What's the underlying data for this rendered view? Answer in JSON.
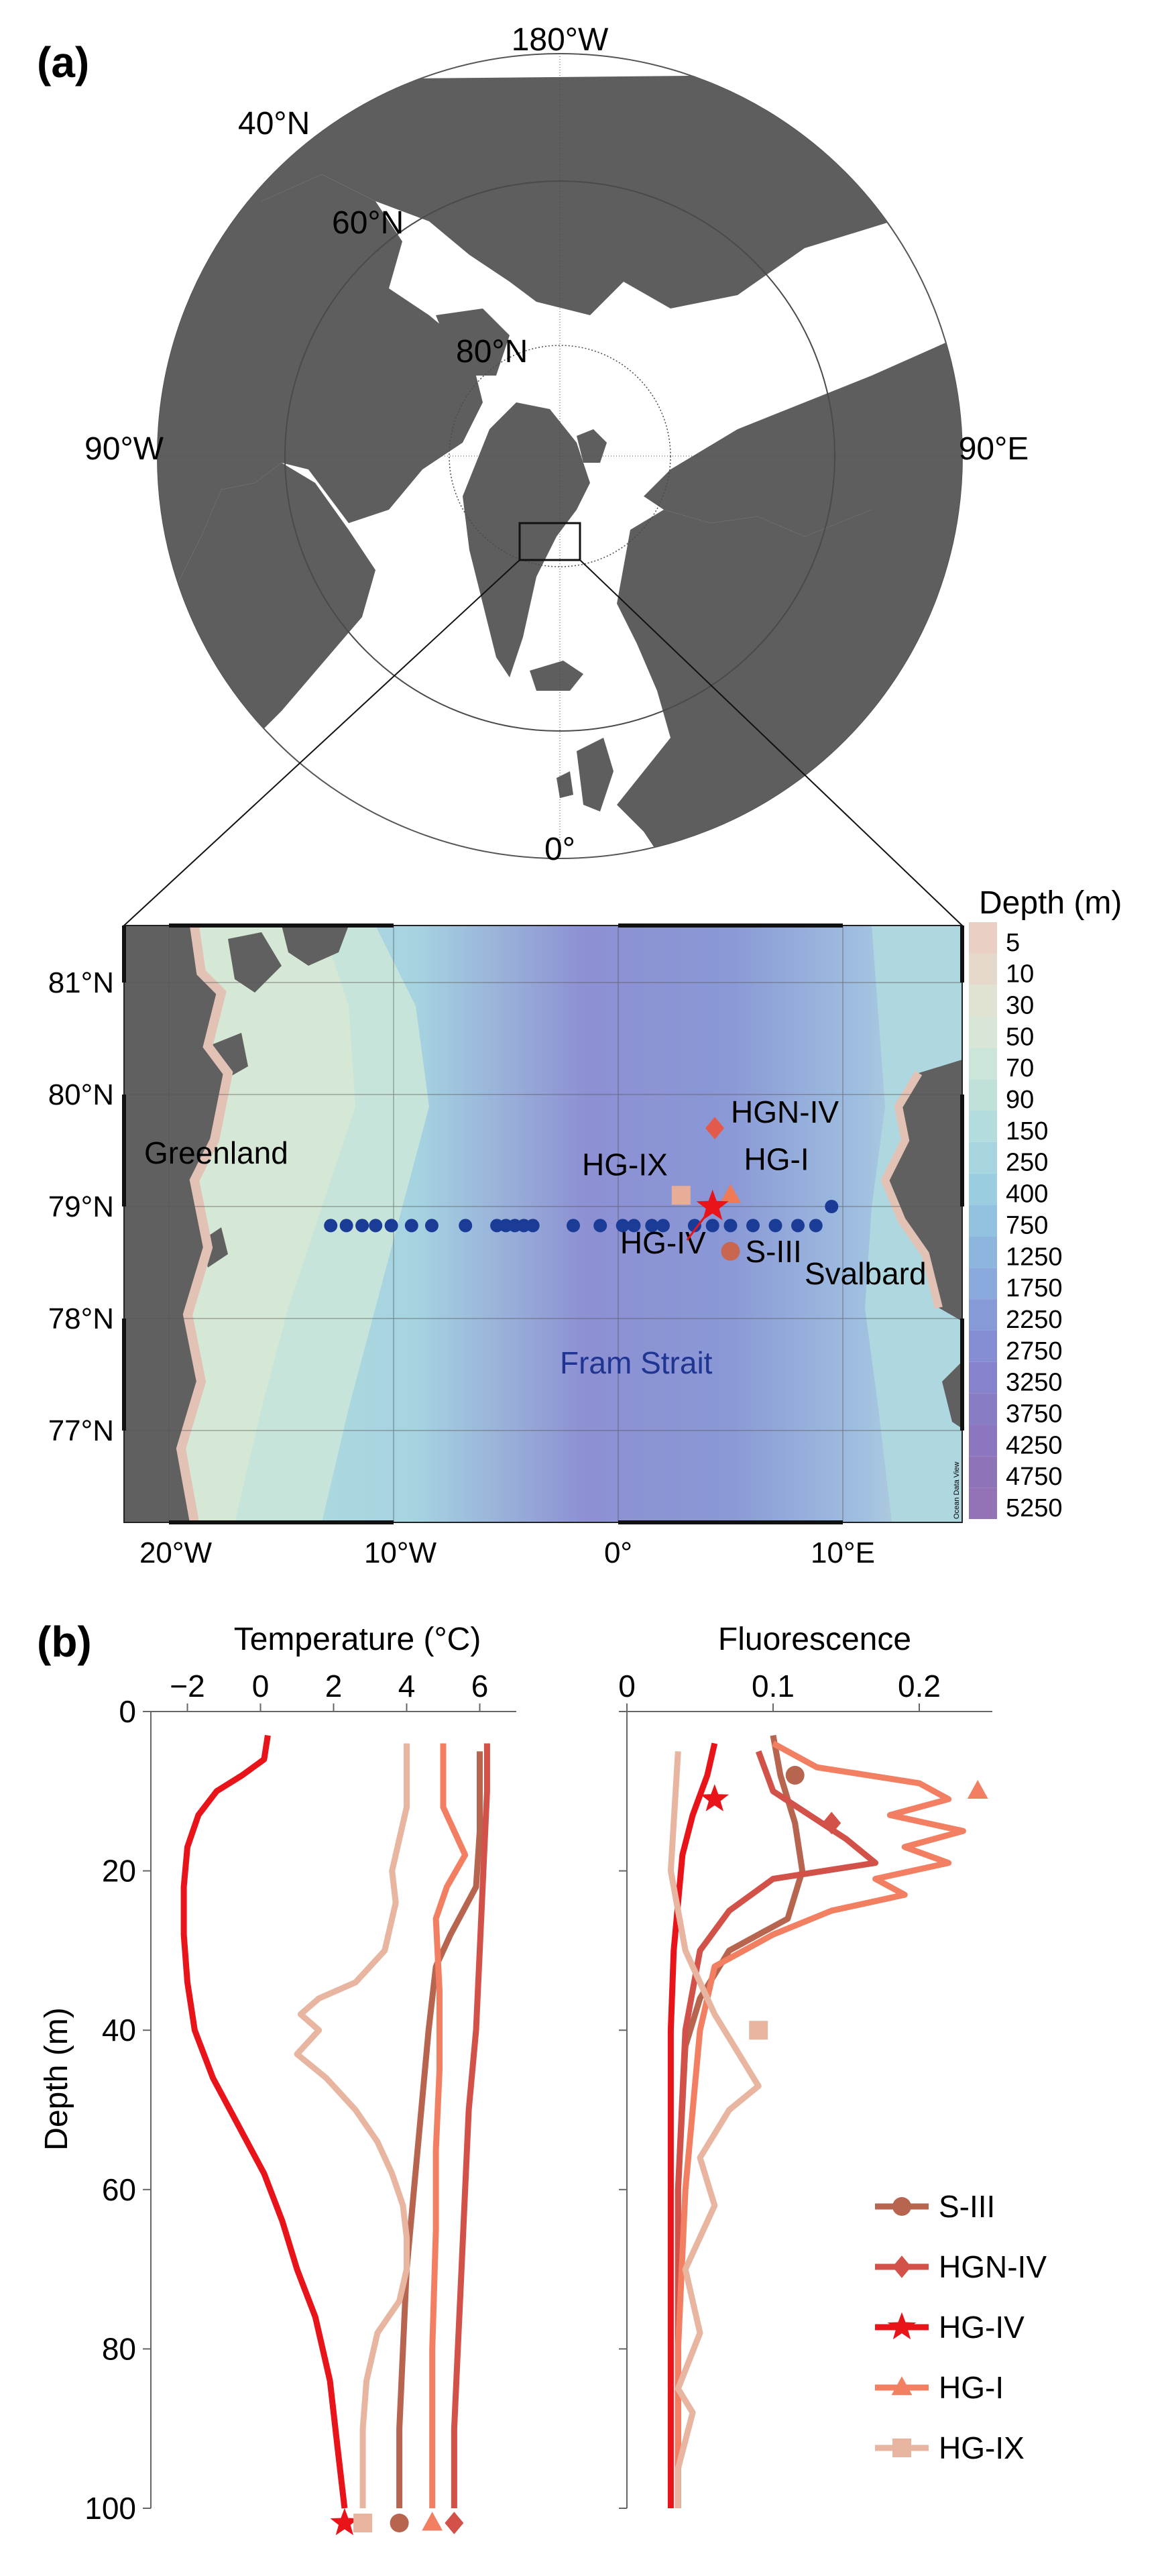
{
  "panel_labels": {
    "a": "(a)",
    "b": "(b)"
  },
  "polar_map": {
    "lat_labels": [
      "40°N",
      "60°N",
      "80°N"
    ],
    "lon_labels": {
      "top": "180°W",
      "left": "90°W",
      "right": "90°E",
      "bottom": "0°"
    },
    "colors": {
      "land": "#5e5e5e",
      "ocean": "#ffffff",
      "grid": "#4a4a4a"
    }
  },
  "inset_map": {
    "lat_labels": [
      "81°N",
      "80°N",
      "79°N",
      "78°N",
      "77°N"
    ],
    "lon_labels": [
      "20°W",
      "10°W",
      "0°",
      "10°E"
    ],
    "places": {
      "greenland": "Greenland",
      "svalbard": "Svalbard",
      "fram": "Fram Strait"
    },
    "stations": [
      {
        "name": "HGN-IV",
        "lon": 4.3,
        "lat": 79.7,
        "marker": "diamond",
        "color": "#e45a4a"
      },
      {
        "name": "HG-IX",
        "lon": 2.8,
        "lat": 79.1,
        "marker": "square",
        "color": "#e7ad98"
      },
      {
        "name": "HG-I",
        "lon": 5.0,
        "lat": 79.1,
        "marker": "triangle",
        "color": "#f07a55"
      },
      {
        "name": "HG-IV",
        "lon": 4.2,
        "lat": 79.0,
        "marker": "star",
        "color": "#e8141a"
      },
      {
        "name": "S-III",
        "lon": 5.0,
        "lat": 78.6,
        "marker": "circle",
        "color": "#c8664f"
      }
    ],
    "transect_lons": [
      -12.8,
      -12.1,
      -11.4,
      -10.8,
      -10.1,
      -9.2,
      -8.3,
      -6.8,
      -5.4,
      -5.0,
      -4.6,
      -4.2,
      -3.8,
      -2.0,
      -0.8,
      0.2,
      0.7,
      1.5,
      2.0,
      3.4,
      4.2,
      5.0,
      6.0,
      7.0,
      8.0,
      8.8
    ],
    "transect_lat": 78.83,
    "transect_end": {
      "lon": 9.5,
      "lat": 79.0
    },
    "dot_color": "#1b3c96",
    "watermark": "Ocean Data View",
    "depth_legend": {
      "title": "Depth (m)",
      "levels": [
        "5",
        "10",
        "30",
        "50",
        "70",
        "90",
        "150",
        "250",
        "400",
        "750",
        "1250",
        "1750",
        "2250",
        "2750",
        "3250",
        "3750",
        "4250",
        "4750",
        "5250"
      ],
      "colors": [
        "#ead0c4",
        "#e6d9cc",
        "#e0e2d2",
        "#d7e6d6",
        "#cbe5d8",
        "#bfe1da",
        "#b2dcdd",
        "#a6d5df",
        "#9bcde0",
        "#92c2e0",
        "#8db6de",
        "#8aa9dc",
        "#879ad8",
        "#858dd3",
        "#8683cc",
        "#887cc5",
        "#8b76bf",
        "#8f73b9",
        "#9372b5"
      ]
    }
  },
  "chart_data": [
    {
      "type": "line",
      "title": "Temperature (°C)",
      "xlabel": "Temperature (°C)",
      "ylabel": "Depth (m)",
      "xlim": [
        -3,
        7
      ],
      "ylim": [
        0,
        100
      ],
      "x_ticks": [
        "−2",
        "0",
        "2",
        "4",
        "6"
      ],
      "y_ticks": [
        "0",
        "20",
        "40",
        "60",
        "80",
        "100"
      ],
      "series": [
        {
          "name": "S-III",
          "color": "#b86550",
          "marker": "circle",
          "points": [
            [
              6.0,
              5
            ],
            [
              6.0,
              15
            ],
            [
              5.9,
              22
            ],
            [
              5.2,
              28
            ],
            [
              4.8,
              32
            ],
            [
              4.6,
              40
            ],
            [
              4.4,
              50
            ],
            [
              4.2,
              60
            ],
            [
              4.0,
              70
            ],
            [
              3.9,
              80
            ],
            [
              3.8,
              90
            ],
            [
              3.8,
              100
            ]
          ]
        },
        {
          "name": "HGN-IV",
          "color": "#d2524a",
          "marker": "diamond",
          "points": [
            [
              6.2,
              4
            ],
            [
              6.2,
              10
            ],
            [
              6.1,
              20
            ],
            [
              6.0,
              30
            ],
            [
              5.9,
              40
            ],
            [
              5.7,
              50
            ],
            [
              5.6,
              60
            ],
            [
              5.5,
              70
            ],
            [
              5.4,
              80
            ],
            [
              5.3,
              90
            ],
            [
              5.3,
              100
            ]
          ]
        },
        {
          "name": "HG-IV",
          "color": "#e8141a",
          "marker": "star",
          "points": [
            [
              0.2,
              3
            ],
            [
              0.1,
              6
            ],
            [
              -0.5,
              8
            ],
            [
              -1.2,
              10
            ],
            [
              -1.7,
              13
            ],
            [
              -2.0,
              17
            ],
            [
              -2.1,
              22
            ],
            [
              -2.1,
              28
            ],
            [
              -2.0,
              34
            ],
            [
              -1.8,
              40
            ],
            [
              -1.3,
              46
            ],
            [
              -0.6,
              52
            ],
            [
              0.1,
              58
            ],
            [
              0.6,
              64
            ],
            [
              1.0,
              70
            ],
            [
              1.5,
              76
            ],
            [
              1.9,
              84
            ],
            [
              2.1,
              92
            ],
            [
              2.3,
              100
            ]
          ]
        },
        {
          "name": "HG-I",
          "color": "#f37f62",
          "marker": "triangle",
          "points": [
            [
              5.0,
              4
            ],
            [
              5.0,
              12
            ],
            [
              5.6,
              18
            ],
            [
              5.1,
              22
            ],
            [
              4.8,
              26
            ],
            [
              4.9,
              35
            ],
            [
              4.9,
              45
            ],
            [
              4.8,
              55
            ],
            [
              4.8,
              65
            ],
            [
              4.7,
              80
            ],
            [
              4.7,
              100
            ]
          ]
        },
        {
          "name": "HG-IX",
          "color": "#e8b5a0",
          "marker": "square",
          "points": [
            [
              4.0,
              4
            ],
            [
              4.0,
              12
            ],
            [
              3.8,
              16
            ],
            [
              3.6,
              20
            ],
            [
              3.7,
              24
            ],
            [
              3.4,
              30
            ],
            [
              2.6,
              34
            ],
            [
              1.6,
              36
            ],
            [
              1.1,
              38
            ],
            [
              1.6,
              40
            ],
            [
              1.0,
              43
            ],
            [
              1.8,
              46
            ],
            [
              2.6,
              50
            ],
            [
              3.2,
              54
            ],
            [
              3.6,
              58
            ],
            [
              3.9,
              62
            ],
            [
              4.0,
              66
            ],
            [
              4.0,
              70
            ],
            [
              3.8,
              74
            ],
            [
              3.2,
              78
            ],
            [
              2.9,
              84
            ],
            [
              2.8,
              90
            ],
            [
              2.8,
              100
            ]
          ]
        }
      ]
    },
    {
      "type": "line",
      "title": "Fluorescence",
      "xlabel": "Fluorescence",
      "ylabel": "Depth (m)",
      "xlim": [
        0,
        0.25
      ],
      "ylim": [
        0,
        100
      ],
      "x_ticks": [
        "0",
        "0.1",
        "0.2"
      ],
      "y_ticks": [
        "0",
        "20",
        "40",
        "60",
        "80",
        "100"
      ],
      "series": [
        {
          "name": "S-III",
          "color": "#b86550",
          "marker": "circle",
          "marker_point": [
            0.115,
            8
          ],
          "points": [
            [
              0.1,
              3
            ],
            [
              0.105,
              8
            ],
            [
              0.115,
              14
            ],
            [
              0.12,
              20
            ],
            [
              0.11,
              26
            ],
            [
              0.07,
              30
            ],
            [
              0.05,
              36
            ],
            [
              0.04,
              42
            ],
            [
              0.035,
              60
            ],
            [
              0.035,
              80
            ],
            [
              0.035,
              100
            ]
          ]
        },
        {
          "name": "HGN-IV",
          "color": "#d2524a",
          "marker": "diamond",
          "marker_point": [
            0.14,
            14
          ],
          "points": [
            [
              0.09,
              5
            ],
            [
              0.1,
              10
            ],
            [
              0.15,
              16
            ],
            [
              0.17,
              19
            ],
            [
              0.1,
              21
            ],
            [
              0.07,
              25
            ],
            [
              0.05,
              30
            ],
            [
              0.04,
              40
            ],
            [
              0.035,
              60
            ],
            [
              0.035,
              80
            ],
            [
              0.035,
              100
            ]
          ]
        },
        {
          "name": "HG-IV",
          "color": "#e8141a",
          "marker": "star",
          "marker_point": [
            0.06,
            11
          ],
          "points": [
            [
              0.06,
              4
            ],
            [
              0.055,
              8
            ],
            [
              0.045,
              13
            ],
            [
              0.038,
              18
            ],
            [
              0.035,
              24
            ],
            [
              0.032,
              30
            ],
            [
              0.03,
              40
            ],
            [
              0.03,
              55
            ],
            [
              0.03,
              70
            ],
            [
              0.03,
              85
            ],
            [
              0.03,
              100
            ]
          ]
        },
        {
          "name": "HG-I",
          "color": "#f37f62",
          "marker": "triangle",
          "marker_point": [
            0.24,
            10
          ],
          "points": [
            [
              0.1,
              4
            ],
            [
              0.13,
              7
            ],
            [
              0.2,
              9
            ],
            [
              0.22,
              11
            ],
            [
              0.18,
              13
            ],
            [
              0.23,
              15
            ],
            [
              0.19,
              17
            ],
            [
              0.22,
              19
            ],
            [
              0.17,
              21
            ],
            [
              0.19,
              23
            ],
            [
              0.14,
              25
            ],
            [
              0.1,
              28
            ],
            [
              0.06,
              32
            ],
            [
              0.05,
              40
            ],
            [
              0.04,
              60
            ],
            [
              0.035,
              80
            ],
            [
              0.035,
              100
            ]
          ]
        },
        {
          "name": "HG-IX",
          "color": "#e8b5a0",
          "marker": "square",
          "marker_point": [
            0.09,
            40
          ],
          "points": [
            [
              0.035,
              5
            ],
            [
              0.03,
              20
            ],
            [
              0.04,
              30
            ],
            [
              0.06,
              38
            ],
            [
              0.08,
              44
            ],
            [
              0.09,
              47
            ],
            [
              0.07,
              50
            ],
            [
              0.05,
              56
            ],
            [
              0.06,
              62
            ],
            [
              0.04,
              70
            ],
            [
              0.05,
              78
            ],
            [
              0.035,
              85
            ],
            [
              0.045,
              88
            ],
            [
              0.035,
              95
            ],
            [
              0.035,
              100
            ]
          ]
        }
      ]
    }
  ],
  "legend": [
    {
      "name": "S-III",
      "color": "#b86550",
      "marker": "circle"
    },
    {
      "name": "HGN-IV",
      "color": "#d2524a",
      "marker": "diamond"
    },
    {
      "name": "HG-IV",
      "color": "#e8141a",
      "marker": "star"
    },
    {
      "name": "HG-I",
      "color": "#f37f62",
      "marker": "triangle"
    },
    {
      "name": "HG-IX",
      "color": "#e8b5a0",
      "marker": "square"
    }
  ]
}
